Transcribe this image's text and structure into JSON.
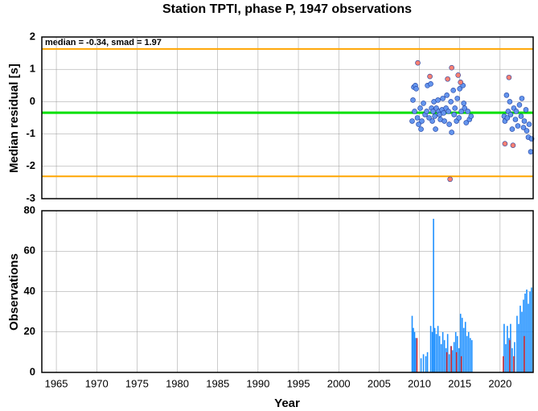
{
  "chart_data": [
    {
      "type": "scatter",
      "title": "Station TPTI, phase P, 1947 observations",
      "y_label": "Median residual [s]",
      "annotation": "median = -0.34, smad = 1.97",
      "xlim": [
        1963.2,
        2024.1
      ],
      "ylim": [
        -3,
        2
      ],
      "yticks": [
        -3,
        -2,
        -1,
        0,
        1,
        2
      ],
      "xticks": [
        1965,
        1970,
        1975,
        1980,
        1985,
        1990,
        1995,
        2000,
        2005,
        2010,
        2015,
        2020
      ],
      "grid": true,
      "hlines": [
        {
          "value": 1.63,
          "color": "#ffa500"
        },
        {
          "value": -0.34,
          "color": "#00e000"
        },
        {
          "value": -2.31,
          "color": "#ffa500"
        }
      ],
      "series": [
        {
          "color": "#6495ed",
          "x": [
            2009.1,
            2009.2,
            2009.3,
            2009.4,
            2009.5,
            2009.6,
            2009.75,
            2009.9,
            2010.1,
            2010.2,
            2010.3,
            2010.5,
            2010.7,
            2010.9,
            2011.0,
            2011.2,
            2011.4,
            2011.5,
            2011.6,
            2011.7,
            2011.8,
            2011.9,
            2012.0,
            2012.1,
            2012.3,
            2012.4,
            2012.5,
            2012.6,
            2012.8,
            2012.9,
            2013.0,
            2013.1,
            2013.3,
            2013.4,
            2013.6,
            2013.7,
            2013.9,
            2014.0,
            2014.2,
            2014.3,
            2014.4,
            2014.6,
            2014.7,
            2014.9,
            2015.0,
            2015.2,
            2015.4,
            2015.5,
            2015.6,
            2015.8,
            2016.0,
            2016.2,
            2016.4,
            2020.5,
            2020.6,
            2020.8,
            2020.9,
            2021.0,
            2021.2,
            2021.3,
            2021.5,
            2021.7,
            2021.9,
            2022.0,
            2022.2,
            2022.4,
            2022.6,
            2022.7,
            2022.9,
            2023.0,
            2023.2,
            2023.3,
            2023.5,
            2023.6,
            2023.8,
            2023.9
          ],
          "values": [
            -0.6,
            0.05,
            0.45,
            -0.3,
            0.5,
            0.4,
            -0.5,
            -0.7,
            -0.2,
            -0.85,
            -0.6,
            -0.05,
            -0.4,
            -0.3,
            0.5,
            -0.5,
            0.55,
            -0.2,
            -0.6,
            -0.3,
            0.0,
            -0.45,
            -0.85,
            -0.2,
            0.05,
            -0.3,
            -0.4,
            -0.55,
            -0.25,
            0.1,
            -0.35,
            -0.6,
            -0.2,
            0.2,
            -0.3,
            -0.7,
            0.0,
            -0.95,
            0.35,
            -0.4,
            -0.2,
            -0.6,
            0.1,
            -0.5,
            0.4,
            -0.3,
            0.5,
            -0.05,
            -0.2,
            -0.65,
            -0.3,
            -0.55,
            -0.45,
            -0.45,
            -0.6,
            0.2,
            -0.5,
            -0.3,
            0.0,
            -0.4,
            -0.85,
            -0.2,
            -0.55,
            -0.3,
            -0.75,
            -0.1,
            -0.45,
            0.1,
            -0.8,
            -0.6,
            -0.25,
            -0.9,
            -1.1,
            -0.7,
            -1.55,
            -1.15
          ]
        },
        {
          "color": "#fa8072",
          "x": [
            2009.8,
            2011.3,
            2013.5,
            2014.0,
            2014.8,
            2015.1,
            2013.8,
            2020.6,
            2021.1,
            2021.6
          ],
          "values": [
            1.2,
            0.78,
            0.7,
            1.05,
            0.82,
            0.6,
            -2.4,
            -1.3,
            0.75,
            -1.35
          ]
        }
      ]
    },
    {
      "type": "bar",
      "x_label": "Year",
      "y_label": "Observations",
      "xlim": [
        1963.2,
        2024.1
      ],
      "ylim": [
        0,
        80
      ],
      "yticks": [
        0,
        20,
        40,
        60,
        80
      ],
      "xticks": [
        1965,
        1970,
        1975,
        1980,
        1985,
        1990,
        1995,
        2000,
        2005,
        2010,
        2015,
        2020
      ],
      "grid": true,
      "series": [
        {
          "color": "#1e90ff",
          "x": [
            2009.1,
            2009.25,
            2009.4,
            2009.55,
            2010.2,
            2010.5,
            2010.8,
            2011.0,
            2011.4,
            2011.6,
            2011.75,
            2011.9,
            2012.1,
            2012.3,
            2012.5,
            2012.7,
            2012.9,
            2013.1,
            2013.3,
            2013.5,
            2013.7,
            2013.9,
            2014.1,
            2014.3,
            2014.5,
            2014.7,
            2014.9,
            2015.1,
            2015.3,
            2015.5,
            2015.7,
            2015.9,
            2016.1,
            2016.3,
            2016.5,
            2020.5,
            2020.7,
            2020.9,
            2021.1,
            2021.3,
            2021.5,
            2021.8,
            2022.1,
            2022.3,
            2022.5,
            2022.7,
            2022.9,
            2023.1,
            2023.3,
            2023.5,
            2023.7,
            2023.9
          ],
          "values": [
            28,
            22,
            20,
            17,
            7,
            9,
            8,
            10,
            23,
            20,
            76,
            22,
            19,
            23,
            18,
            14,
            20,
            16,
            12,
            19,
            9,
            13,
            11,
            15,
            20,
            18,
            12,
            29,
            27,
            22,
            25,
            18,
            20,
            17,
            16,
            24,
            14,
            23,
            17,
            24,
            12,
            15,
            28,
            24,
            33,
            30,
            36,
            39,
            41,
            34,
            40,
            42
          ]
        },
        {
          "color": "#dc3232",
          "x": [
            2009.7,
            2013.4,
            2013.95,
            2014.6,
            2015.2,
            2020.4,
            2021.2,
            2021.7,
            2023.0
          ],
          "values": [
            17,
            10,
            13,
            10,
            8,
            8,
            16,
            8,
            18
          ]
        }
      ]
    }
  ]
}
